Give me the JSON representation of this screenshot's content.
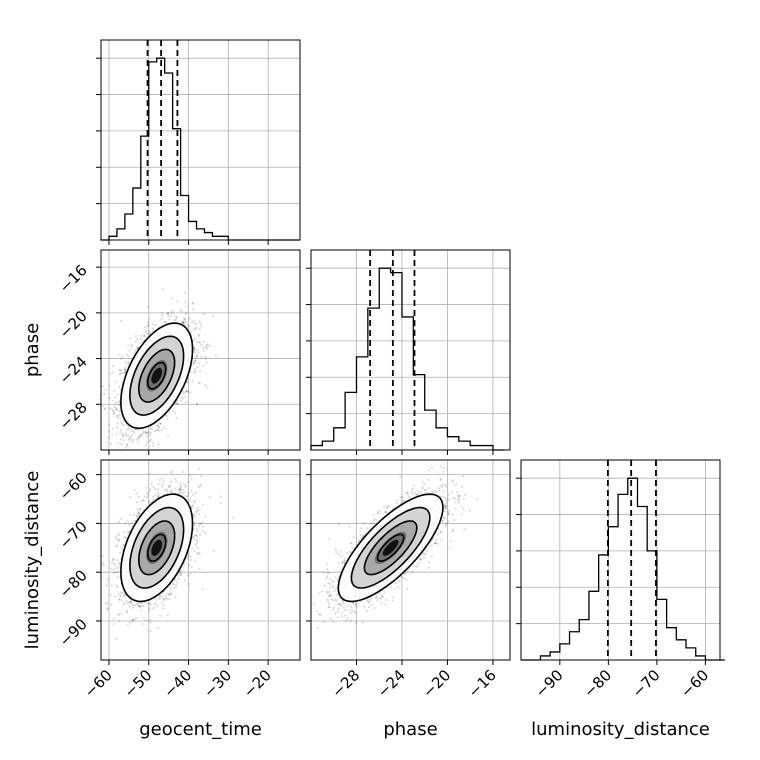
{
  "chart_data": {
    "type": "corner",
    "parameters": [
      "geocent_time",
      "phase",
      "luminosity_distance"
    ],
    "axes": {
      "geocent_time": {
        "label": "geocent_time",
        "range": [
          -62,
          -12
        ],
        "ticks": [
          -60,
          -50,
          -40,
          -30,
          -20
        ]
      },
      "phase": {
        "label": "phase",
        "range": [
          -32,
          -14.5
        ],
        "ticks": [
          -28,
          -24,
          -20,
          -16
        ]
      },
      "luminosity_distance": {
        "label": "luminosity_distance",
        "range": [
          -98,
          -57
        ],
        "ticks": [
          -90,
          -80,
          -70,
          -60
        ]
      }
    },
    "histograms": [
      {
        "parameter": "geocent_time",
        "bins": [
          -62,
          -60,
          -58,
          -56,
          -54,
          -52,
          -50,
          -48,
          -46,
          -44,
          -42,
          -40,
          -38,
          -36,
          -34,
          -32,
          -30,
          -28,
          -26,
          -24,
          -22,
          -20,
          -18,
          -16,
          -14,
          -12
        ],
        "counts": [
          0,
          1,
          3,
          7,
          14,
          28,
          48,
          49,
          45,
          30,
          12,
          5,
          3,
          2,
          1,
          1,
          0,
          0,
          0,
          0,
          0,
          0,
          0,
          0,
          0
        ],
        "quantiles": [
          -50.3,
          -46.9,
          -42.8
        ]
      },
      {
        "parameter": "phase",
        "bins": [
          -32,
          -31,
          -30,
          -29,
          -28,
          -27,
          -26,
          -25,
          -24,
          -23,
          -22,
          -21,
          -20,
          -19,
          -18,
          -17,
          -16,
          -15
        ],
        "counts": [
          1,
          2,
          5,
          13,
          21,
          32,
          41,
          40,
          30,
          17,
          9,
          5,
          3,
          2,
          1,
          1,
          0
        ],
        "quantiles": [
          -26.8,
          -24.8,
          -22.9
        ]
      },
      {
        "parameter": "luminosity_distance",
        "bins": [
          -98,
          -96,
          -94,
          -92,
          -90,
          -88,
          -86,
          -84,
          -82,
          -80,
          -78,
          -76,
          -74,
          -72,
          -70,
          -68,
          -66,
          -64,
          -62,
          -60,
          -58,
          -56
        ],
        "counts": [
          0,
          0,
          1,
          2,
          4,
          7,
          10,
          17,
          26,
          33,
          41,
          45,
          38,
          27,
          15,
          8,
          5,
          3,
          1,
          0,
          0
        ],
        "quantiles": [
          -80.1,
          -75.3,
          -70.2
        ]
      }
    ],
    "scatter_panels": [
      {
        "x": "geocent_time",
        "y": "phase",
        "center": [
          -48,
          -25.5
        ],
        "sd": [
          4.5,
          2.3
        ],
        "rho": 0.5
      },
      {
        "x": "geocent_time",
        "y": "luminosity_distance",
        "center": [
          -48,
          -75
        ],
        "sd": [
          4.5,
          5.5
        ],
        "rho": 0.45
      },
      {
        "x": "phase",
        "y": "luminosity_distance",
        "center": [
          -25,
          -75
        ],
        "sd": [
          2.3,
          5.5
        ],
        "rho": 0.75
      }
    ],
    "grid": true
  }
}
